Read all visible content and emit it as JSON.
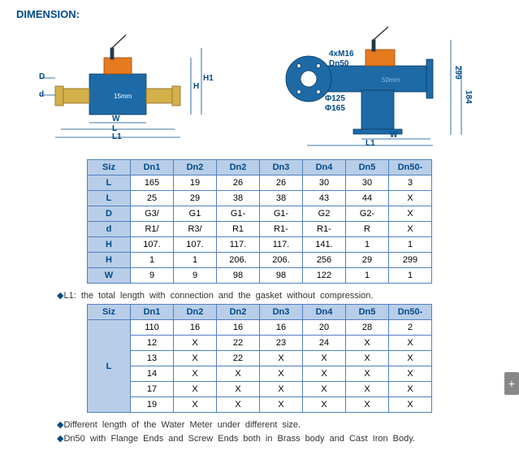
{
  "title": "DIMENSION:",
  "diagram1": {
    "labels": {
      "D": "D",
      "d": "d",
      "W": "W",
      "L": "L",
      "L1": "L1",
      "H": "H",
      "H1": "H1",
      "size": "15mm"
    },
    "colors": {
      "body": "#1d6aa7",
      "top": "#e67a1e",
      "brass": "#d4b04a",
      "line": "#004a8a"
    }
  },
  "diagram2": {
    "labels": {
      "flange": "4xM16",
      "dn": "Dn50",
      "phi1": "Φ125",
      "phi2": "Φ165",
      "W": "W",
      "L1": "L1",
      "size": "50mm",
      "h1": "299",
      "h2": "184"
    },
    "colors": {
      "body": "#1d6aa7",
      "top": "#e67a1e",
      "line": "#004a8a"
    }
  },
  "table1": {
    "headers": [
      "Siz",
      "Dn1",
      "Dn2",
      "Dn2",
      "Dn3",
      "Dn4",
      "Dn5",
      "Dn50-"
    ],
    "rows": [
      [
        "L",
        "165",
        "19",
        "26",
        "26",
        "30",
        "30",
        "3"
      ],
      [
        "L",
        "25",
        "29",
        "38",
        "38",
        "43",
        "44",
        "X"
      ],
      [
        "D",
        "G3/",
        "G1",
        "G1-",
        "G1-",
        "G2",
        "G2-",
        "X"
      ],
      [
        "d",
        "R1/",
        "R3/",
        "R1",
        "R1-",
        "R1-",
        "R",
        "X"
      ],
      [
        "H",
        "107.",
        "107.",
        "117.",
        "117.",
        "141.",
        "1",
        "1"
      ],
      [
        "H",
        "1",
        "1",
        "206.",
        "206.",
        "256",
        "29",
        "299"
      ],
      [
        "W",
        "9",
        "9",
        "98",
        "98",
        "122",
        "1",
        "1"
      ]
    ]
  },
  "note1": "L1: the total length with connection and the gasket without compression.",
  "table2": {
    "headers": [
      "Siz",
      "Dn1",
      "Dn2",
      "Dn2",
      "Dn3",
      "Dn4",
      "Dn5",
      "Dn50-"
    ],
    "rowLabel": "L",
    "rows": [
      [
        "110",
        "16",
        "16",
        "16",
        "20",
        "28",
        "2"
      ],
      [
        "12",
        "X",
        "22",
        "23",
        "24",
        "X",
        "X"
      ],
      [
        "13",
        "X",
        "22",
        "X",
        "X",
        "X",
        "X"
      ],
      [
        "14",
        "X",
        "X",
        "X",
        "X",
        "X",
        "X"
      ],
      [
        "17",
        "X",
        "X",
        "X",
        "X",
        "X",
        "X"
      ],
      [
        "19",
        "X",
        "X",
        "X",
        "X",
        "X",
        "X"
      ]
    ]
  },
  "note2": "Different length of the Water Meter under different size.",
  "note3": "Dn50 with Flange Ends and Screw Ends both in Brass body and Cast Iron Body."
}
